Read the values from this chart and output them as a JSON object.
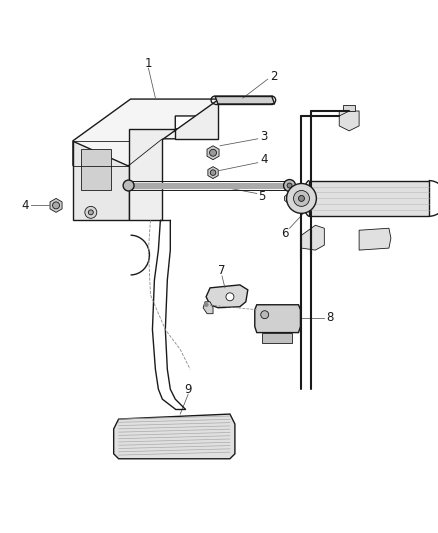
{
  "bg_color": "#ffffff",
  "line_color": "#1a1a1a",
  "lw_main": 1.0,
  "lw_thick": 1.5,
  "lw_thin": 0.6,
  "label_fontsize": 8.5,
  "leader_color": "#555555",
  "leader_lw": 0.55,
  "figsize": [
    4.39,
    5.33
  ],
  "dpi": 100
}
